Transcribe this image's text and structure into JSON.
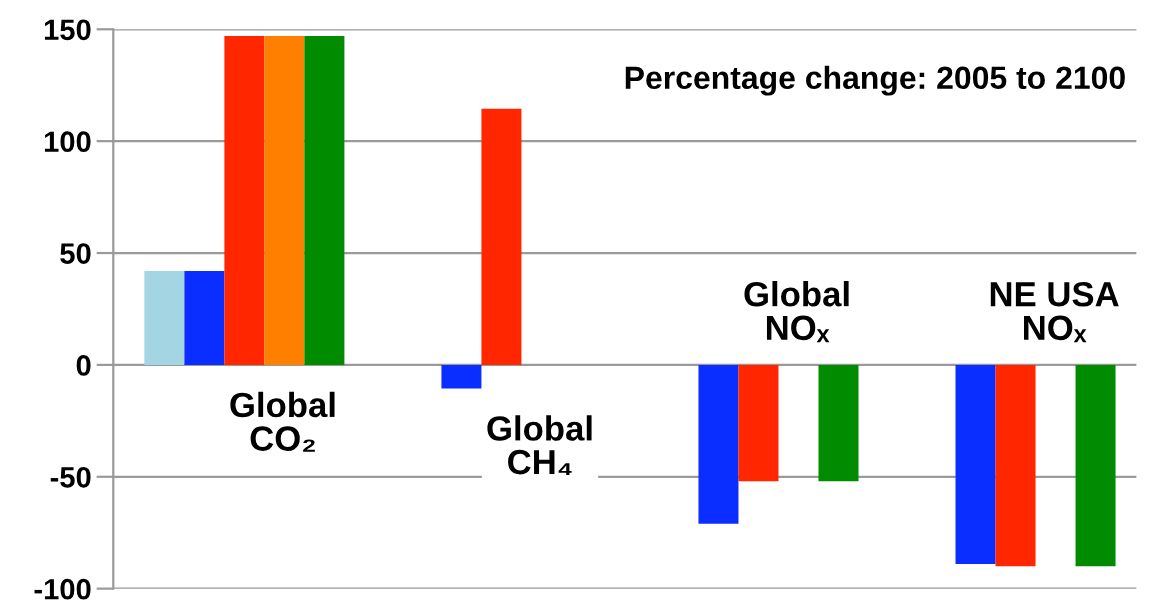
{
  "chart_data": {
    "type": "bar",
    "title": "Percentage change: 2005 to 2100",
    "categories": [
      "Global CO₂",
      "Global CH₄",
      "Global NOₓ",
      "NE USA NOₓ"
    ],
    "series": [
      {
        "color": "#a3d5e3",
        "values": [
          42,
          null,
          null,
          null
        ]
      },
      {
        "color": "#0a2eff",
        "values": [
          42,
          -10.5,
          -71,
          -89
        ]
      },
      {
        "color": "#ff2600",
        "values": [
          147,
          114.5,
          -52,
          -90
        ]
      },
      {
        "color": "#ff7f00",
        "values": [
          147,
          null,
          null,
          null
        ]
      },
      {
        "color": "#008b00",
        "values": [
          147,
          null,
          -52,
          -90
        ]
      }
    ],
    "ylim": [
      -100,
      150
    ],
    "yticks": [
      -100,
      -50,
      0,
      50,
      100,
      150
    ],
    "grid": "y",
    "tick_labels": "y"
  }
}
